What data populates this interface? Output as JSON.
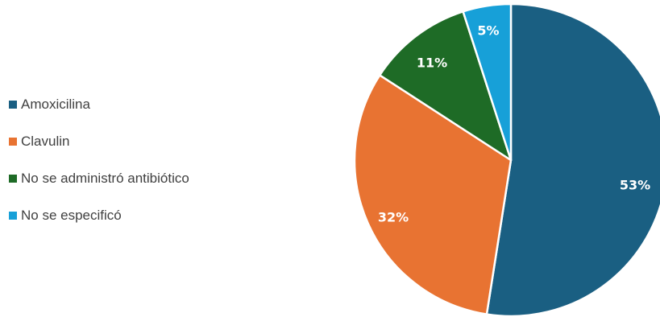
{
  "chart_data": {
    "type": "pie",
    "categories": [
      "Amoxicilina",
      "Clavulin",
      "No se administró antibiótico",
      "No se especificó"
    ],
    "values": [
      53,
      32,
      11,
      5
    ],
    "labels": [
      "53%",
      "32%",
      "11%",
      "5%"
    ],
    "colors": [
      "#1a5f82",
      "#e87332",
      "#1e6b26",
      "#17a0d8"
    ],
    "legend_position": "left"
  }
}
